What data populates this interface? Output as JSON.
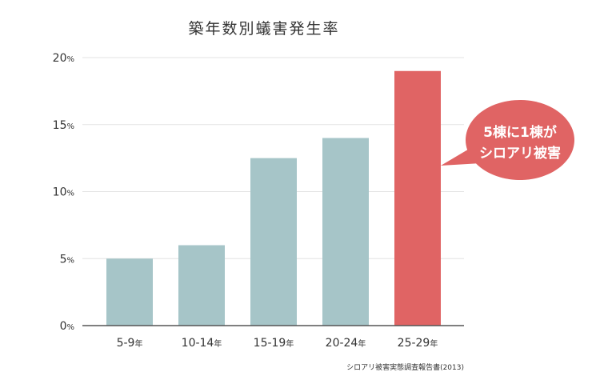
{
  "chart_data": {
    "type": "bar",
    "title": "築年数別蟻害発生率",
    "categories": [
      "5-9年",
      "10-14年",
      "15-19年",
      "20-24年",
      "25-29年"
    ],
    "category_parts": [
      {
        "num": "5-9",
        "unit": "年"
      },
      {
        "num": "10-14",
        "unit": "年"
      },
      {
        "num": "15-19",
        "unit": "年"
      },
      {
        "num": "20-24",
        "unit": "年"
      },
      {
        "num": "25-29",
        "unit": "年"
      }
    ],
    "values": [
      5.0,
      6.0,
      12.5,
      14.0,
      19.0
    ],
    "ylim": [
      0,
      20
    ],
    "yticks": [
      {
        "value": 0,
        "num": "0",
        "unit": "%"
      },
      {
        "value": 5,
        "num": "5",
        "unit": "%"
      },
      {
        "value": 10,
        "num": "10",
        "unit": "%"
      },
      {
        "value": 15,
        "num": "15",
        "unit": "%"
      },
      {
        "value": 20,
        "num": "20",
        "unit": "%"
      }
    ],
    "xlabel": "",
    "ylabel": "",
    "grid": true,
    "colors": {
      "bar": "#a6c5c8",
      "highlight": "#e06464",
      "callout": "#e06464"
    },
    "highlight_index": 4,
    "annotation": {
      "lines": [
        "5棟に1棟が",
        "シロアリ被害"
      ]
    },
    "source": "シロアリ被害実態調査報告書(2013)"
  }
}
